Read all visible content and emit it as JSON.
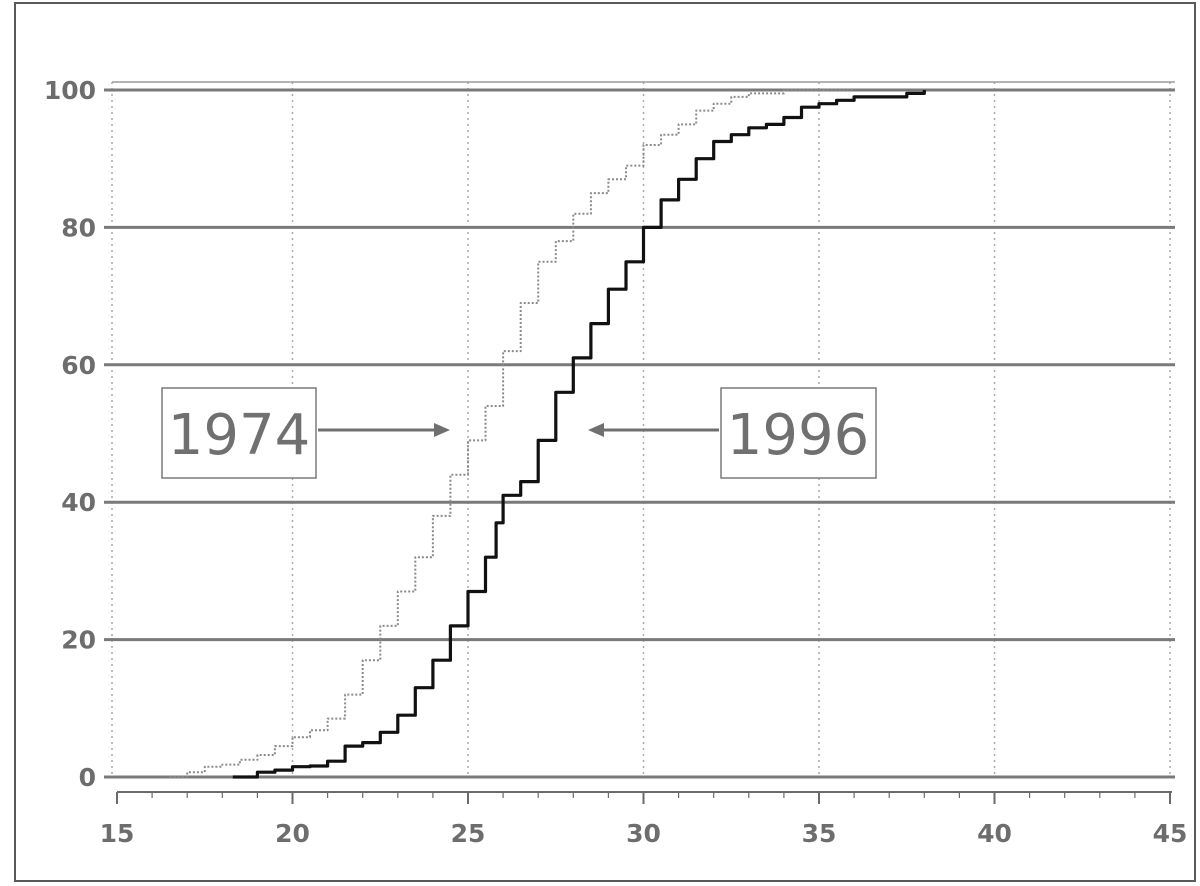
{
  "chart_data": {
    "type": "line",
    "title": "",
    "xlabel": "",
    "ylabel": "",
    "xlim": [
      15,
      45
    ],
    "ylim": [
      0,
      100
    ],
    "x_ticks": [
      "15",
      "20",
      "25",
      "30",
      "35",
      "40",
      "45"
    ],
    "y_ticks": [
      "0",
      "20",
      "40",
      "60",
      "80",
      "100"
    ],
    "grid": {
      "horizontal": "solid",
      "vertical": "dotted"
    },
    "legend": "none",
    "annotations": [
      {
        "text": "1974",
        "target_series": "1974",
        "arrow": "right"
      },
      {
        "text": "1996",
        "target_series": "1996",
        "arrow": "left"
      }
    ],
    "series": [
      {
        "name": "1974",
        "style": "dotted",
        "color": "#8a8a8a",
        "points": [
          [
            16.5,
            0
          ],
          [
            17,
            0.7
          ],
          [
            17.5,
            1.5
          ],
          [
            18,
            1.8
          ],
          [
            18.5,
            2.5
          ],
          [
            19,
            3.2
          ],
          [
            19.5,
            4.5
          ],
          [
            20,
            5.8
          ],
          [
            20.5,
            6.8
          ],
          [
            21,
            8.5
          ],
          [
            21.5,
            12
          ],
          [
            22,
            17
          ],
          [
            22.5,
            22
          ],
          [
            23,
            27
          ],
          [
            23.5,
            32
          ],
          [
            24,
            38
          ],
          [
            24.5,
            44
          ],
          [
            25,
            49
          ],
          [
            25.5,
            54
          ],
          [
            26,
            62
          ],
          [
            26.5,
            69
          ],
          [
            27,
            75
          ],
          [
            27.5,
            78
          ],
          [
            28,
            82
          ],
          [
            28.5,
            85
          ],
          [
            29,
            87
          ],
          [
            29.5,
            89
          ],
          [
            30,
            92
          ],
          [
            30.5,
            93.5
          ],
          [
            31,
            95
          ],
          [
            31.5,
            97
          ],
          [
            32,
            98
          ],
          [
            32.5,
            99
          ],
          [
            33,
            99.5
          ],
          [
            34,
            100
          ],
          [
            36,
            100
          ]
        ]
      },
      {
        "name": "1996",
        "style": "solid",
        "color": "#111111",
        "points": [
          [
            18.3,
            0
          ],
          [
            19,
            0.7
          ],
          [
            19.5,
            1
          ],
          [
            20,
            1.5
          ],
          [
            20.5,
            1.6
          ],
          [
            21,
            2.3
          ],
          [
            21.5,
            4.5
          ],
          [
            22,
            5
          ],
          [
            22.5,
            6.5
          ],
          [
            23,
            9
          ],
          [
            23.5,
            13
          ],
          [
            24,
            17
          ],
          [
            24.5,
            22
          ],
          [
            25,
            27
          ],
          [
            25.5,
            32
          ],
          [
            25.8,
            37
          ],
          [
            26,
            41
          ],
          [
            26.5,
            43
          ],
          [
            27,
            49
          ],
          [
            27.5,
            56
          ],
          [
            28,
            61
          ],
          [
            28.5,
            66
          ],
          [
            29,
            71
          ],
          [
            29.5,
            75
          ],
          [
            30,
            80
          ],
          [
            30.5,
            84
          ],
          [
            31,
            87
          ],
          [
            31.5,
            90
          ],
          [
            32,
            92.5
          ],
          [
            32.5,
            93.5
          ],
          [
            33,
            94.5
          ],
          [
            33.5,
            95
          ],
          [
            34,
            96
          ],
          [
            34.5,
            97.5
          ],
          [
            35,
            98
          ],
          [
            35.5,
            98.5
          ],
          [
            36,
            99
          ],
          [
            37,
            99
          ],
          [
            37.5,
            99.5
          ],
          [
            38,
            100
          ]
        ]
      }
    ]
  }
}
